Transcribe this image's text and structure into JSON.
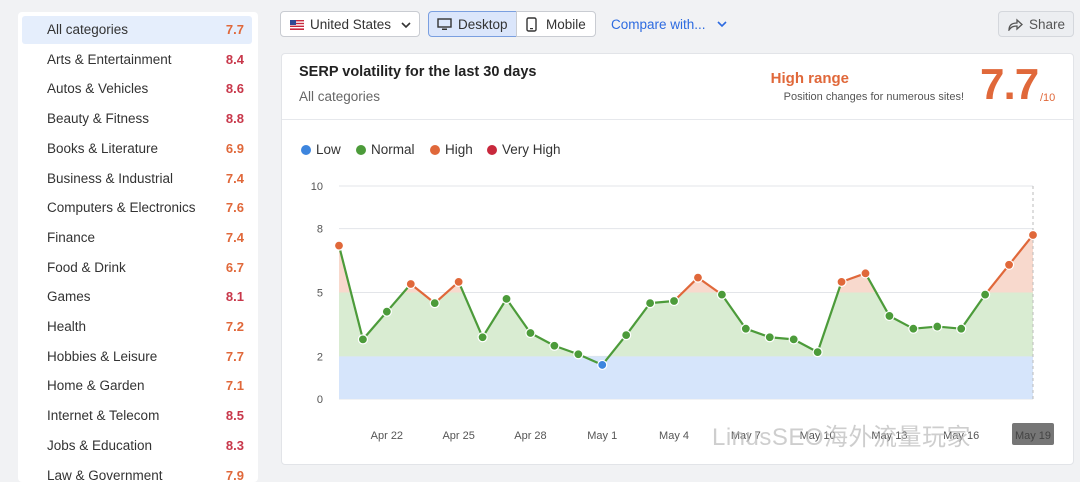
{
  "sidebar": {
    "items": [
      {
        "label": "All categories",
        "score": "7.7",
        "color": "#e0683a",
        "active": true
      },
      {
        "label": "Arts & Entertainment",
        "score": "8.4",
        "color": "#c8374a"
      },
      {
        "label": "Autos & Vehicles",
        "score": "8.6",
        "color": "#c8374a"
      },
      {
        "label": "Beauty & Fitness",
        "score": "8.8",
        "color": "#c8374a"
      },
      {
        "label": "Books & Literature",
        "score": "6.9",
        "color": "#e0683a"
      },
      {
        "label": "Business & Industrial",
        "score": "7.4",
        "color": "#e0683a"
      },
      {
        "label": "Computers & Electronics",
        "score": "7.6",
        "color": "#e0683a"
      },
      {
        "label": "Finance",
        "score": "7.4",
        "color": "#e0683a"
      },
      {
        "label": "Food & Drink",
        "score": "6.7",
        "color": "#e0683a"
      },
      {
        "label": "Games",
        "score": "8.1",
        "color": "#c8374a"
      },
      {
        "label": "Health",
        "score": "7.2",
        "color": "#e0683a"
      },
      {
        "label": "Hobbies & Leisure",
        "score": "7.7",
        "color": "#e0683a"
      },
      {
        "label": "Home & Garden",
        "score": "7.1",
        "color": "#e0683a"
      },
      {
        "label": "Internet & Telecom",
        "score": "8.5",
        "color": "#c8374a"
      },
      {
        "label": "Jobs & Education",
        "score": "8.3",
        "color": "#c8374a"
      },
      {
        "label": "Law & Government",
        "score": "7.9",
        "color": "#e0683a"
      }
    ]
  },
  "toolbar": {
    "country": "United States",
    "desktop": "Desktop",
    "mobile": "Mobile",
    "compare": "Compare with...",
    "share": "Share"
  },
  "card": {
    "title": "SERP volatility for the last 30 days",
    "subtitle": "All categories",
    "range_label": "High range",
    "range_desc": "Position changes for numerous sites!",
    "score": "7.7",
    "score_max": "/10"
  },
  "watermark": "LinusSEO海外流量玩家",
  "colors": {
    "low": "#3d85de",
    "normal": "#4c9b3a",
    "high": "#e0683a",
    "very_high": "#c8283c"
  },
  "chart_data": {
    "type": "line",
    "legend": [
      "Low",
      "Normal",
      "High",
      "Very High"
    ],
    "y_ticks": [
      0,
      2,
      5,
      8,
      10
    ],
    "ylim": [
      0,
      10
    ],
    "x_tick_labels": [
      "Apr 22",
      "Apr 25",
      "Apr 28",
      "May 1",
      "May 4",
      "May 7",
      "May 10",
      "May 13",
      "May 16",
      "May 19"
    ],
    "x": [
      "Apr 20",
      "Apr 21",
      "Apr 22",
      "Apr 23",
      "Apr 24",
      "Apr 25",
      "Apr 26",
      "Apr 27",
      "Apr 28",
      "Apr 29",
      "Apr 30",
      "May 1",
      "May 2",
      "May 3",
      "May 4",
      "May 5",
      "May 6",
      "May 7",
      "May 8",
      "May 9",
      "May 10",
      "May 11",
      "May 12",
      "May 13",
      "May 14",
      "May 15",
      "May 16",
      "May 17",
      "May 18",
      "May 19"
    ],
    "values": [
      7.2,
      2.8,
      4.1,
      5.4,
      4.5,
      5.5,
      2.9,
      4.7,
      3.1,
      2.5,
      2.1,
      1.6,
      3.0,
      4.5,
      4.6,
      5.7,
      4.9,
      3.3,
      2.9,
      2.8,
      2.2,
      5.5,
      5.9,
      3.9,
      3.3,
      3.4,
      3.3,
      4.9,
      6.3,
      7.7
    ],
    "bands": [
      {
        "name": "Low",
        "from": 0,
        "to": 2
      },
      {
        "name": "Normal",
        "from": 2,
        "to": 5
      },
      {
        "name": "High",
        "from": 5,
        "to": 8
      },
      {
        "name": "Very High",
        "from": 8,
        "to": 10
      }
    ]
  }
}
